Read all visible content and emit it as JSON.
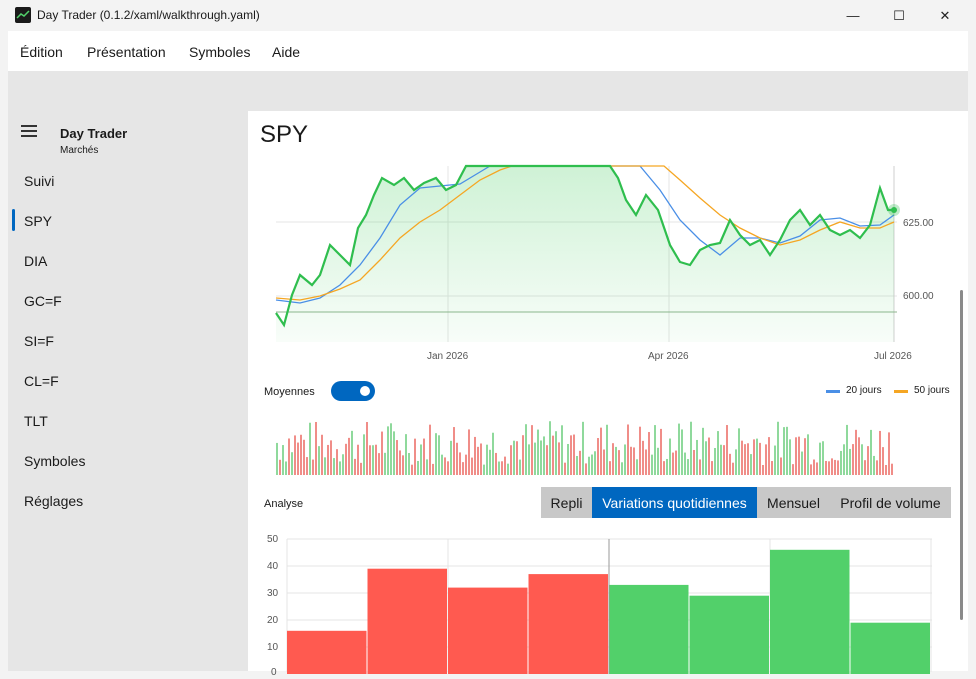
{
  "window": {
    "title": "Day Trader (0.1.2/xaml/walkthrough.yaml)",
    "minimize_glyph": "—",
    "maximize_glyph": "☐",
    "close_glyph": "✕"
  },
  "menu": [
    "Édition",
    "Présentation",
    "Symboles",
    "Aide"
  ],
  "sidebar": {
    "title": "Day Trader",
    "subtitle": "Marchés",
    "items": [
      "Suivi",
      "SPY",
      "DIA",
      "GC=F",
      "SI=F",
      "CL=F",
      "TLT",
      "Symboles",
      "Réglages"
    ],
    "active_index": 1
  },
  "main": {
    "title": "SPY",
    "price_chart": {
      "x_ticks": [
        "Jan 2026",
        "Apr 2026",
        "Jul 2026"
      ],
      "y_ticks": [
        "625.00",
        "600.00"
      ]
    },
    "averages": {
      "label": "Moyennes",
      "enabled": true,
      "legend": [
        {
          "name": "20 jours",
          "color": "#4a8fe6"
        },
        {
          "name": "50 jours",
          "color": "#f5a623"
        }
      ]
    },
    "analysis": {
      "label": "Analyse",
      "tabs": [
        "Repli",
        "Variations quotidiennes",
        "Mensuel",
        "Profil de volume"
      ],
      "active_tab": 1
    }
  },
  "chart_data": {
    "type": "bar",
    "y_ticks": [
      "50",
      "40",
      "30",
      "20",
      "10",
      "0"
    ],
    "ylim": [
      0,
      50
    ],
    "values": [
      16,
      39,
      32,
      37,
      33,
      29,
      46,
      19
    ],
    "colors": [
      "#ff5a50",
      "#ff5a50",
      "#ff5a50",
      "#ff5a50",
      "#52d06a",
      "#52d06a",
      "#52d06a",
      "#52d06a"
    ]
  }
}
